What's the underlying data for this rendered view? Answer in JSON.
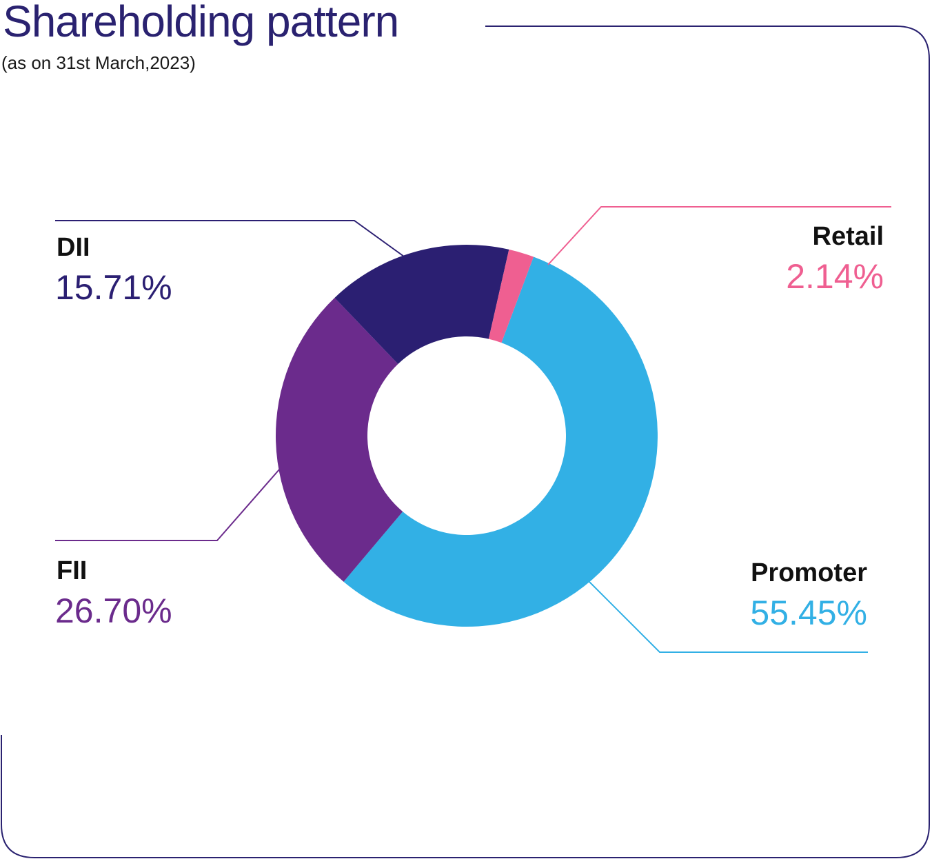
{
  "title": "Shareholding pattern",
  "subtitle": "(as on 31st March,2023)",
  "colors": {
    "frame": "#2a2270",
    "Promoter": "#32b0e5",
    "FII": "#6b2b8c",
    "DII": "#2b1f72",
    "Retail": "#ef5f91"
  },
  "chart_data": {
    "type": "pie",
    "variant": "donut",
    "title": "Shareholding pattern",
    "subtitle": "(as on 31st March,2023)",
    "slices": [
      {
        "name": "Promoter",
        "value": 55.45,
        "label": "55.45%"
      },
      {
        "name": "FII",
        "value": 26.7,
        "label": "26.70%"
      },
      {
        "name": "DII",
        "value": 15.71,
        "label": "15.71%"
      },
      {
        "name": "Retail",
        "value": 2.14,
        "label": "2.14%"
      }
    ],
    "legend": "none"
  }
}
